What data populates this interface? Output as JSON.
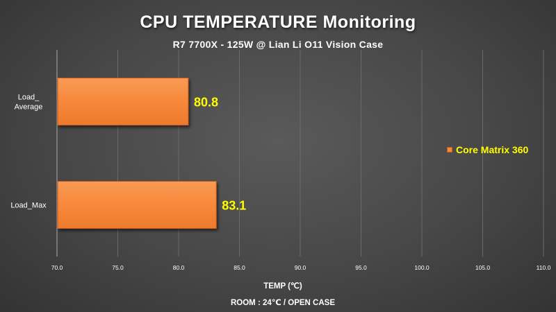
{
  "chart_data": {
    "type": "bar",
    "orientation": "horizontal",
    "title": "CPU TEMPERATURE Monitoring",
    "subtitle": "R7 7700X - 125W @ Lian Li O11 Vision Case",
    "categories": [
      "Load_ Average",
      "Load_Max"
    ],
    "category_lines": [
      [
        "Load_",
        "Average"
      ],
      [
        "Load_Max"
      ]
    ],
    "series": [
      {
        "name": "Core Matrix 360",
        "values": [
          80.8,
          83.1
        ],
        "color": "#f7883b"
      }
    ],
    "data_labels": [
      "80.8",
      "83.1"
    ],
    "xlim": [
      70.0,
      110.0
    ],
    "xticks": [
      70.0,
      75.0,
      80.0,
      85.0,
      90.0,
      95.0,
      100.0,
      105.0,
      110.0
    ],
    "xtick_labels": [
      "70.0",
      "75.0",
      "80.0",
      "85.0",
      "90.0",
      "95.0",
      "100.0",
      "105.0",
      "110.0"
    ],
    "xlabel": "TEMP (℃)",
    "note": "ROOM : 24℃ / OPEN CASE",
    "grid": "vertical",
    "legend_position": "right",
    "colors": {
      "bar": "#f7883b",
      "bar_border": "#c4591a",
      "data_label": "#ffff00",
      "text": "#ffffff",
      "background": "#474747"
    }
  }
}
